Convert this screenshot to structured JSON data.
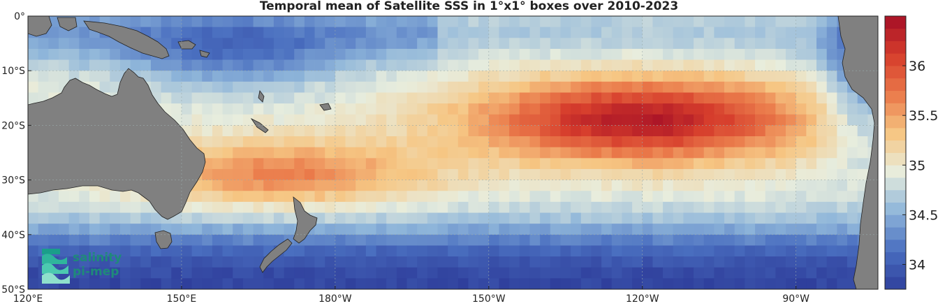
{
  "title": "Temporal mean of Satellite SSS in 1°x1° boxes over 2010-2023",
  "map": {
    "lon_range_deg_east": [
      120,
      286
    ],
    "lat_range_deg": [
      -50,
      0
    ],
    "x_ticks": [
      "120°E",
      "150°E",
      "180°W",
      "150°W",
      "120°W",
      "90°W"
    ],
    "y_ticks": [
      "0°",
      "10°S",
      "20°S",
      "30°S",
      "40°S",
      "50°S"
    ],
    "land_color": "#808080",
    "grid": "dotted"
  },
  "colorbar": {
    "range": [
      33.75,
      36.5
    ],
    "tick_labels": [
      "34",
      "34.5",
      "35",
      "35.5",
      "36"
    ],
    "colors": [
      "#2f3f9c",
      "#4a6fc0",
      "#8fb6da",
      "#e8eddd",
      "#f6c683",
      "#ea7a4a",
      "#d63d2c",
      "#a50f26"
    ]
  },
  "logo": {
    "line1": "salinity",
    "line2": "pi-mep",
    "color": "#1f8a7a"
  }
}
